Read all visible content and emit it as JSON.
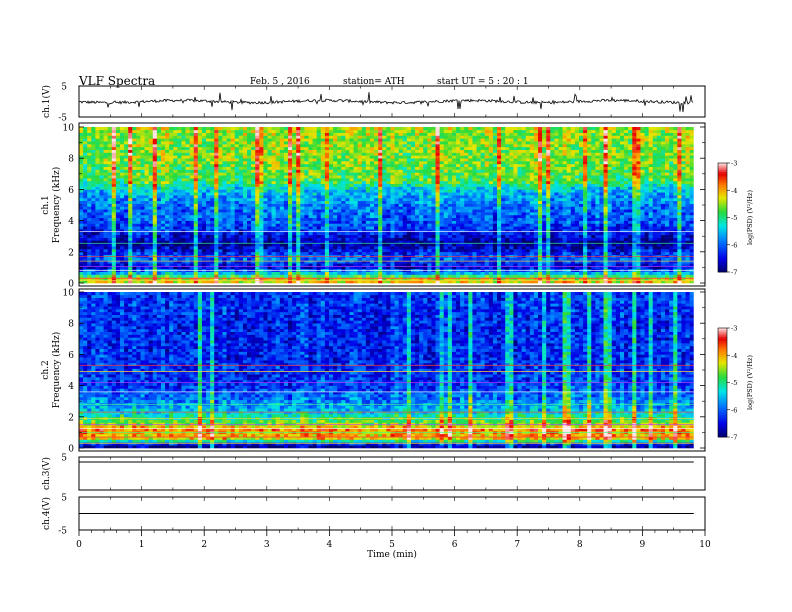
{
  "header": {
    "title": "VLF  Spectra",
    "date": "Feb. 5   , 2016",
    "station": "station= ATH",
    "start": "start  UT  =    5  : 20 : 1"
  },
  "chart_data": [
    {
      "type": "line",
      "panel": "ch1-waveform",
      "ylabel": "ch.1(V)",
      "ylim": [
        -5,
        5
      ],
      "y_ticks": [
        "5",
        "-5"
      ],
      "x_range_min": [
        0,
        9.82
      ],
      "trace_level_V": 0.0,
      "color": "#000000"
    },
    {
      "type": "heatmap",
      "panel": "ch1-spectrogram",
      "ylabel": "ch.1\nFrequency  (kHz)",
      "ylim": [
        0,
        10
      ],
      "y_ticks": [
        "0",
        "2",
        "4",
        "6",
        "8",
        "10"
      ],
      "x_range_min": [
        0,
        9.82
      ],
      "colorbar": {
        "label": "log(PSD) (V²/Hz)",
        "range": [
          -7,
          -3
        ],
        "ticks": [
          "-3",
          "-4",
          "-5",
          "-6",
          "-7"
        ]
      },
      "profile_khz_logpsd": [
        [
          0.2,
          -4.2
        ],
        [
          1.0,
          -6.6
        ],
        [
          1.6,
          -6.0
        ],
        [
          2.5,
          -6.9
        ],
        [
          3.5,
          -6.2
        ],
        [
          5.0,
          -5.9
        ],
        [
          6.0,
          -5.5
        ],
        [
          6.5,
          -4.8
        ],
        [
          8.0,
          -4.6
        ],
        [
          10.0,
          -4.5
        ]
      ],
      "bright_lines_khz": [
        0.15,
        0.3,
        0.45,
        0.8,
        1.05,
        1.4,
        1.7,
        2.55,
        3.3
      ]
    },
    {
      "type": "heatmap",
      "panel": "ch2-spectrogram",
      "ylabel": "ch.2\nFrequency  (kHz)",
      "ylim": [
        0,
        10
      ],
      "y_ticks": [
        "0",
        "2",
        "4",
        "6",
        "8",
        "10"
      ],
      "x_range_min": [
        0,
        9.82
      ],
      "colorbar": {
        "label": "log(PSD) (V²/Hz)",
        "range": [
          -7,
          -3
        ],
        "ticks": [
          "-3",
          "-4",
          "-5",
          "-6",
          "-7"
        ]
      },
      "profile_khz_logpsd": [
        [
          0.2,
          -6.8
        ],
        [
          0.6,
          -4.2
        ],
        [
          1.2,
          -3.8
        ],
        [
          1.6,
          -4.6
        ],
        [
          2.5,
          -5.6
        ],
        [
          4.0,
          -6.2
        ],
        [
          6.0,
          -6.3
        ],
        [
          8.0,
          -6.3
        ],
        [
          10.0,
          -6.2
        ]
      ],
      "bright_lines_khz": [
        0.3,
        0.7,
        1.0,
        1.25,
        1.5,
        1.9,
        2.3,
        2.8,
        3.6,
        4.2,
        4.9,
        5.3
      ]
    },
    {
      "type": "line",
      "panel": "ch3-waveform",
      "ylabel": "ch.3(V)",
      "ylim": [
        -5,
        5
      ],
      "y_ticks": [
        "5"
      ],
      "x_range_min": [
        0,
        9.82
      ],
      "trace_level_V": -5,
      "color": "#000000"
    },
    {
      "type": "line",
      "panel": "ch4-waveform",
      "ylabel": "ch.4(V)",
      "ylim": [
        -5,
        5
      ],
      "y_ticks": [
        "5",
        "-5"
      ],
      "x_range_min": [
        0,
        9.82
      ],
      "trace_level_V": 0.0,
      "color": "#000000"
    }
  ],
  "x_axis": {
    "label": "Time  (min)",
    "range": [
      0,
      10
    ],
    "ticks": [
      "0",
      "1",
      "2",
      "3",
      "4",
      "5",
      "6",
      "7",
      "8",
      "9",
      "10"
    ]
  }
}
